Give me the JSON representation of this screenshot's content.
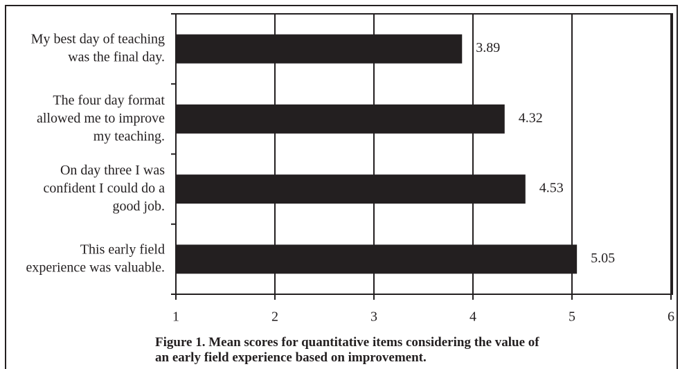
{
  "chart_data": {
    "type": "bar",
    "orientation": "horizontal",
    "title": "Figure 1. Mean scores for quantitative items considering the value of\nan early field experience based on improvement.",
    "categories": [
      "My best day of teaching\nwas the final day.",
      "The four day format\nallowed me to improve\nmy teaching.",
      "On day three I was\nconfident I could do a\ngood job.",
      "This early field\nexperience was valuable."
    ],
    "values": [
      3.89,
      4.32,
      4.53,
      5.05
    ],
    "color": "#231f20",
    "xlim": [
      1,
      6
    ],
    "xticks": [
      1,
      2,
      3,
      4,
      5,
      6
    ],
    "grid": true
  }
}
